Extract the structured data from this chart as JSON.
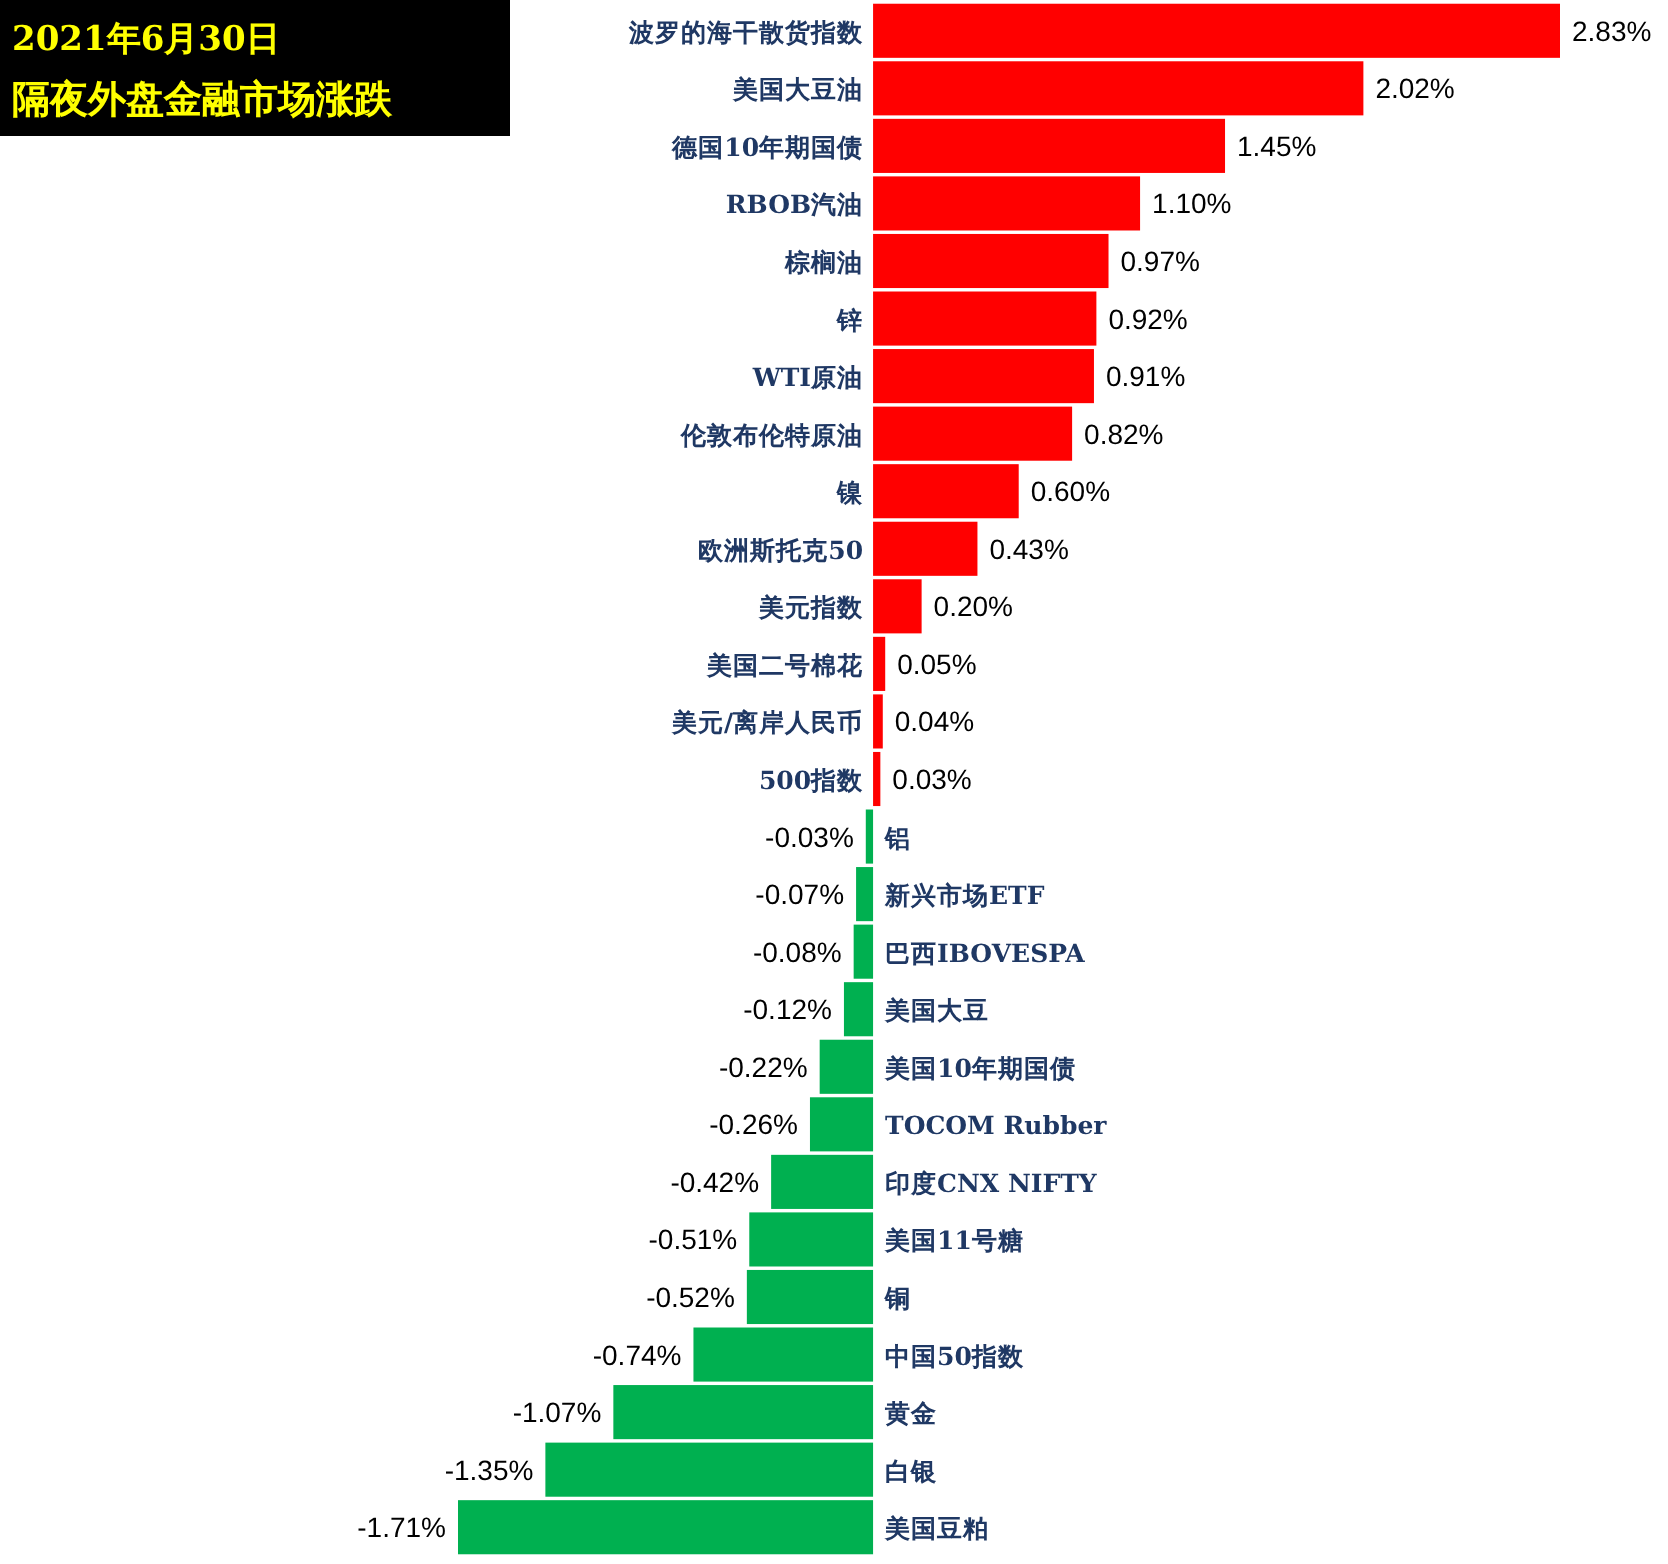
{
  "chart_data": {
    "type": "bar",
    "orientation": "horizontal",
    "title": "2021年6月30日",
    "subtitle": "隔夜外盘金融市场涨跌",
    "categories": [
      "波罗的海干散货指数",
      "美国大豆油",
      "德国10年期国债",
      "RBOB汽油",
      "棕榈油",
      "锌",
      "WTI原油",
      "伦敦布伦特原油",
      "镍",
      "欧洲斯托克50",
      "美元指数",
      "美国二号棉花",
      "美元/离岸人民币",
      "500指数",
      "铝",
      "新兴市场ETF",
      "巴西IBOVESPA",
      "美国大豆",
      "美国10年期国债",
      "TOCOM Rubber",
      "印度CNX NIFTY",
      "美国11号糖",
      "铜",
      "中国50指数",
      "黄金",
      "白银",
      "美国豆粕"
    ],
    "values": [
      2.83,
      2.02,
      1.45,
      1.1,
      0.97,
      0.92,
      0.91,
      0.82,
      0.6,
      0.43,
      0.2,
      0.05,
      0.04,
      0.03,
      -0.03,
      -0.07,
      -0.08,
      -0.12,
      -0.22,
      -0.26,
      -0.42,
      -0.51,
      -0.52,
      -0.74,
      -1.07,
      -1.35,
      -1.71
    ],
    "value_labels": [
      "2.83%",
      "2.02%",
      "1.45%",
      "1.10%",
      "0.97%",
      "0.92%",
      "0.91%",
      "0.82%",
      "0.60%",
      "0.43%",
      "0.20%",
      "0.05%",
      "0.04%",
      "0.03%",
      "-0.03%",
      "-0.07%",
      "-0.08%",
      "-0.12%",
      "-0.22%",
      "-0.26%",
      "-0.42%",
      "-0.51%",
      "-0.52%",
      "-0.74%",
      "-1.07%",
      "-1.35%",
      "-1.71%"
    ],
    "colors": [
      "#ff0000",
      "#ff0000",
      "#ff0000",
      "#ff0000",
      "#ff0000",
      "#ff0000",
      "#ff0000",
      "#ff0000",
      "#ff0000",
      "#ff0000",
      "#ff0000",
      "#ff0000",
      "#ff0000",
      "#ff0000",
      "#00b050",
      "#00b050",
      "#00b050",
      "#00b050",
      "#00b050",
      "#00b050",
      "#00b050",
      "#00b050",
      "#00b050",
      "#00b050",
      "#00b050",
      "#00b050",
      "#00b050"
    ]
  }
}
